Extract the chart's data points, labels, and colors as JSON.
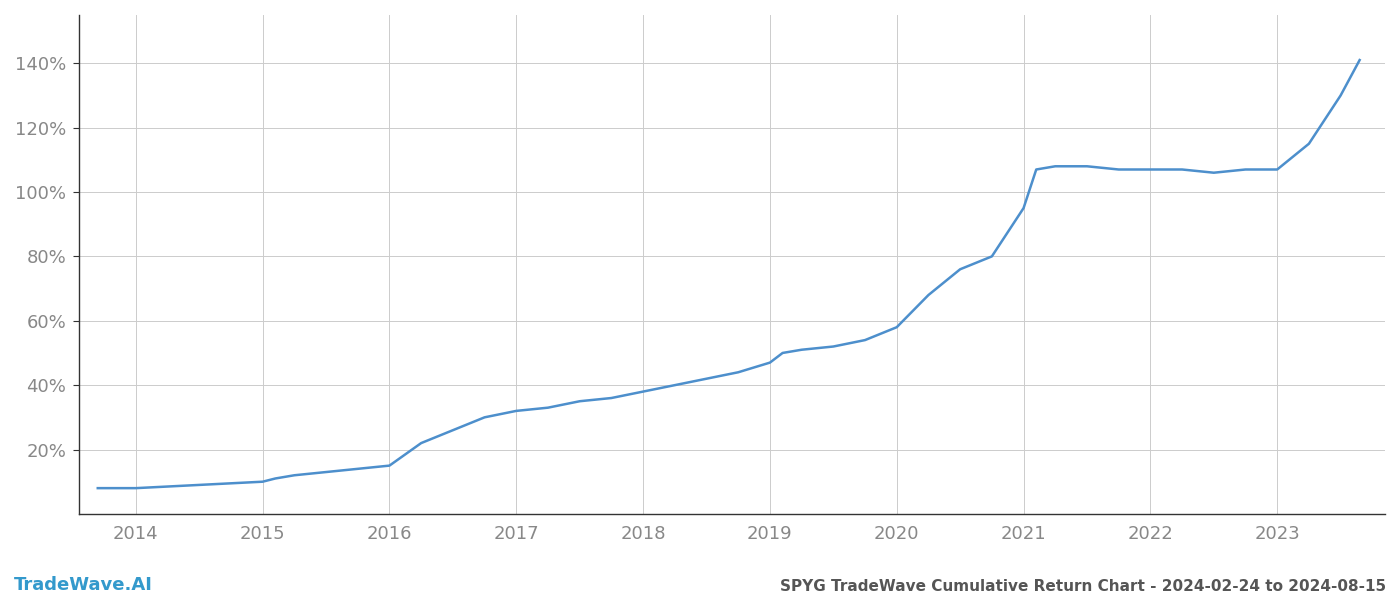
{
  "title": "SPYG TradeWave Cumulative Return Chart - 2024-02-24 to 2024-08-15",
  "watermark": "TradeWave.AI",
  "line_color": "#4d8fcc",
  "background_color": "#ffffff",
  "grid_color": "#cccccc",
  "x_years": [
    2014,
    2015,
    2016,
    2017,
    2018,
    2019,
    2020,
    2021,
    2022,
    2023
  ],
  "x_values": [
    2013.7,
    2014.0,
    2014.25,
    2014.5,
    2014.75,
    2015.0,
    2015.1,
    2015.25,
    2015.5,
    2015.75,
    2016.0,
    2016.25,
    2016.5,
    2016.75,
    2017.0,
    2017.25,
    2017.5,
    2017.75,
    2018.0,
    2018.25,
    2018.5,
    2018.75,
    2019.0,
    2019.1,
    2019.25,
    2019.5,
    2019.75,
    2020.0,
    2020.25,
    2020.5,
    2020.75,
    2021.0,
    2021.1,
    2021.25,
    2021.5,
    2021.75,
    2022.0,
    2022.25,
    2022.5,
    2022.75,
    2023.0,
    2023.25,
    2023.5,
    2023.65
  ],
  "y_values": [
    8,
    8,
    8.5,
    9,
    9.5,
    10,
    11,
    12,
    13,
    14,
    15,
    22,
    26,
    30,
    32,
    33,
    35,
    36,
    38,
    40,
    42,
    44,
    47,
    50,
    51,
    52,
    54,
    58,
    68,
    76,
    80,
    95,
    107,
    108,
    108,
    107,
    107,
    107,
    106,
    107,
    107,
    115,
    130,
    141
  ],
  "ylim": [
    0,
    155
  ],
  "xlim": [
    2013.55,
    2023.85
  ],
  "yticks": [
    20,
    40,
    60,
    80,
    100,
    120,
    140
  ],
  "ytick_labels": [
    "20%",
    "40%",
    "60%",
    "80%",
    "100%",
    "120%",
    "140%"
  ],
  "title_fontsize": 11,
  "tick_fontsize": 13,
  "watermark_fontsize": 13,
  "line_width": 1.8,
  "title_color": "#555555",
  "tick_color": "#888888",
  "watermark_color": "#3399cc",
  "spine_color": "#aaaaaa",
  "left_spine_color": "#333333"
}
